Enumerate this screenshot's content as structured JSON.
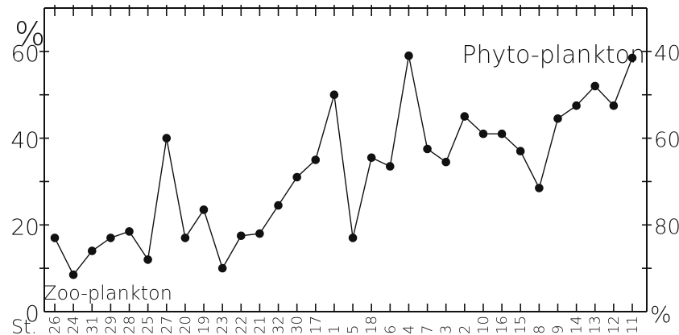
{
  "chart_data": {
    "type": "line",
    "title": "",
    "annotations": {
      "upper_right": "Phyto-plankton",
      "lower_left": "Zoo-plankton"
    },
    "left_axis": {
      "unit_label": "%",
      "ticks": [
        "0",
        "20",
        "40",
        "60"
      ],
      "range": [
        0,
        70
      ]
    },
    "right_axis": {
      "unit_label": "%",
      "ticks": [
        "40",
        "60",
        "80"
      ],
      "range": [
        30,
        100
      ],
      "reversed": true
    },
    "x_prefix_label": "St.",
    "categories": [
      "26",
      "24",
      "31",
      "29",
      "28",
      "25",
      "27",
      "20",
      "19",
      "23",
      "22",
      "21",
      "32",
      "30",
      "17",
      "1",
      "5",
      "18",
      "6",
      "4",
      "7",
      "3",
      "2",
      "10",
      "16",
      "15",
      "8",
      "9",
      "14",
      "13",
      "12",
      "11"
    ],
    "series": [
      {
        "values": [
          17,
          8.5,
          14,
          17,
          18.5,
          12,
          40,
          17,
          23.5,
          10,
          17.5,
          18,
          24.5,
          31,
          35,
          50,
          17,
          35.5,
          33.5,
          59,
          37.5,
          34.5,
          45,
          41,
          41,
          37,
          28.5,
          44.5,
          47.5,
          52,
          47.5,
          58.5
        ]
      }
    ],
    "grid": false,
    "legend": "none"
  }
}
